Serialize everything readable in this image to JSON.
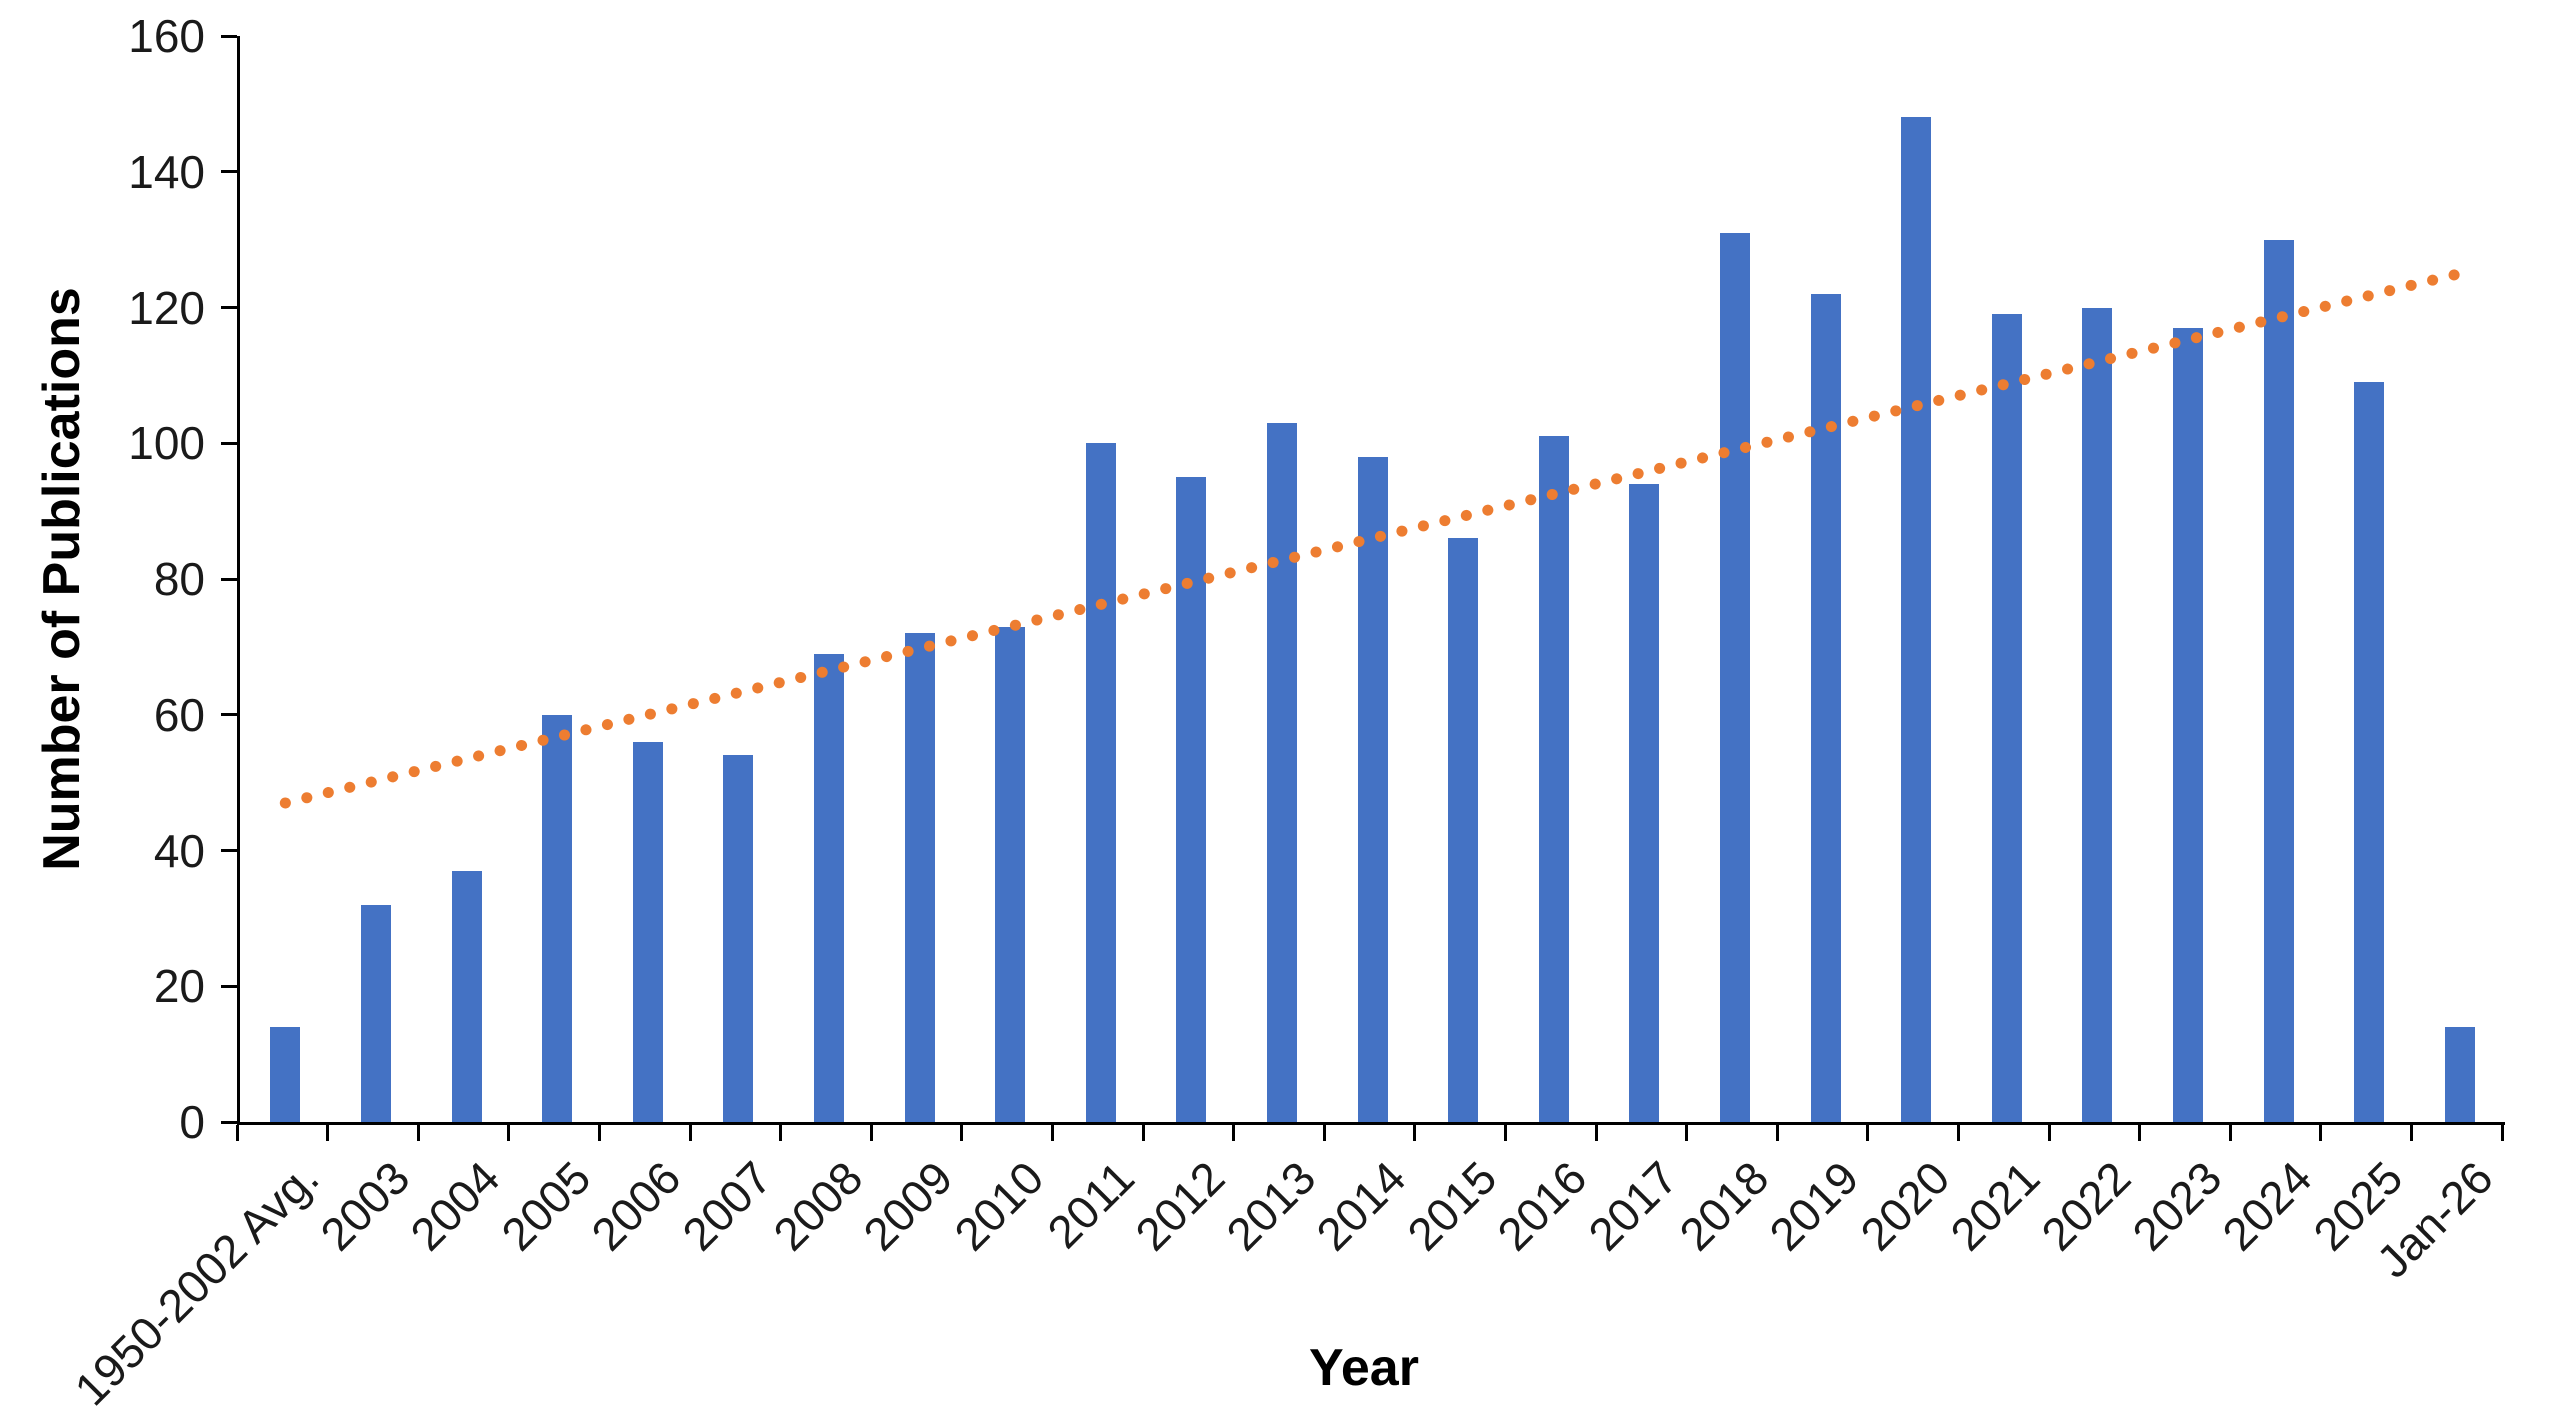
{
  "chart_data": {
    "type": "bar",
    "title": "",
    "xlabel": "Year",
    "ylabel": "Number of Publications",
    "categories": [
      "1950-2002 Avg.",
      "2003",
      "2004",
      "2005",
      "2006",
      "2007",
      "2008",
      "2009",
      "2010",
      "2011",
      "2012",
      "2013",
      "2014",
      "2015",
      "2016",
      "2017",
      "2018",
      "2019",
      "2020",
      "2021",
      "2022",
      "2023",
      "2024",
      "2025",
      "Jan-26"
    ],
    "values": [
      14,
      32,
      37,
      60,
      56,
      54,
      69,
      72,
      73,
      100,
      95,
      103,
      98,
      86,
      101,
      94,
      131,
      122,
      148,
      119,
      120,
      117,
      130,
      109,
      14
    ],
    "ylim": [
      0,
      160
    ],
    "yticks": [
      0,
      20,
      40,
      60,
      80,
      100,
      120,
      140,
      160
    ],
    "grid": false,
    "legend_position": "none",
    "bar_color": "#4472C4",
    "axis_color": "#000000",
    "tick_label_color": "#1a1a1a",
    "trendline": {
      "style": "dotted",
      "color": "#ED7D31",
      "start_value": 47,
      "end_value": 125
    }
  }
}
